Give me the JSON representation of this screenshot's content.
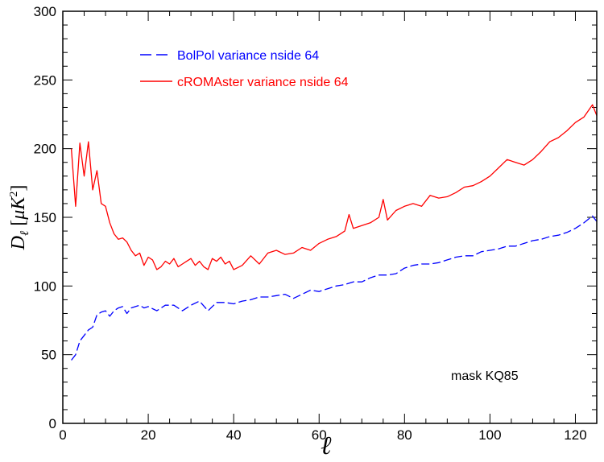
{
  "chart_data": {
    "type": "line",
    "title": "",
    "xlabel": "ℓ",
    "ylabel_main": "D",
    "ylabel_sub": "ℓ",
    "ylabel_unit_open": "[",
    "ylabel_unit_mu": "μ",
    "ylabel_unit_k": "K",
    "ylabel_unit_exp": "2",
    "ylabel_unit_close": "]",
    "xlim": [
      0,
      125
    ],
    "ylim": [
      0,
      300
    ],
    "xticks": [
      0,
      20,
      40,
      60,
      80,
      100,
      120
    ],
    "yticks": [
      0,
      50,
      100,
      150,
      200,
      250,
      300
    ],
    "legend_position": "top-left",
    "annotation": "mask KQ85",
    "series": [
      {
        "name": "BolPol variance nside 64",
        "color": "#0000ff",
        "dash": "dashed",
        "x": [
          2,
          3,
          4,
          5,
          6,
          7,
          8,
          9,
          10,
          11,
          12,
          13,
          14,
          15,
          16,
          17,
          18,
          19,
          20,
          22,
          24,
          26,
          28,
          30,
          32,
          34,
          36,
          38,
          40,
          42,
          44,
          46,
          48,
          50,
          52,
          54,
          56,
          58,
          60,
          62,
          64,
          66,
          68,
          70,
          72,
          74,
          76,
          78,
          80,
          82,
          84,
          86,
          88,
          90,
          92,
          94,
          96,
          98,
          100,
          102,
          104,
          106,
          108,
          110,
          112,
          114,
          116,
          118,
          120,
          122,
          124,
          125
        ],
        "values": [
          46,
          50,
          60,
          64,
          68,
          70,
          79,
          81,
          82,
          78,
          82,
          84,
          85,
          80,
          84,
          85,
          86,
          84,
          85,
          82,
          86,
          86,
          82,
          86,
          89,
          82,
          88,
          88,
          87,
          89,
          90,
          92,
          92,
          93,
          94,
          91,
          94,
          97,
          96,
          98,
          100,
          101,
          103,
          103,
          106,
          108,
          108,
          109,
          113,
          115,
          116,
          116,
          117,
          119,
          121,
          122,
          122,
          125,
          126,
          127,
          129,
          129,
          131,
          133,
          134,
          136,
          137,
          139,
          142,
          146,
          151,
          147
        ]
      },
      {
        "name": "cROMAster variance nside 64",
        "color": "#ff0000",
        "dash": "solid",
        "x": [
          2,
          3,
          4,
          5,
          6,
          7,
          8,
          9,
          10,
          11,
          12,
          13,
          14,
          15,
          16,
          17,
          18,
          19,
          20,
          21,
          22,
          23,
          24,
          25,
          26,
          27,
          28,
          29,
          30,
          31,
          32,
          33,
          34,
          35,
          36,
          37,
          38,
          39,
          40,
          42,
          44,
          46,
          48,
          50,
          52,
          54,
          56,
          58,
          60,
          62,
          64,
          66,
          67,
          68,
          70,
          72,
          74,
          75,
          76,
          78,
          80,
          82,
          84,
          86,
          88,
          90,
          92,
          94,
          96,
          98,
          100,
          102,
          104,
          106,
          108,
          110,
          112,
          114,
          116,
          118,
          120,
          122,
          124,
          125
        ],
        "values": [
          200,
          158,
          204,
          180,
          205,
          170,
          184,
          160,
          158,
          146,
          138,
          134,
          135,
          132,
          126,
          122,
          124,
          115,
          121,
          119,
          112,
          114,
          118,
          116,
          120,
          114,
          116,
          118,
          120,
          115,
          118,
          114,
          112,
          120,
          118,
          121,
          116,
          118,
          112,
          115,
          122,
          116,
          124,
          126,
          123,
          124,
          128,
          126,
          131,
          134,
          136,
          140,
          152,
          142,
          144,
          146,
          150,
          163,
          148,
          155,
          158,
          160,
          158,
          166,
          164,
          165,
          168,
          172,
          173,
          176,
          180,
          186,
          192,
          190,
          188,
          192,
          198,
          205,
          208,
          213,
          219,
          223,
          232,
          224
        ]
      }
    ]
  }
}
